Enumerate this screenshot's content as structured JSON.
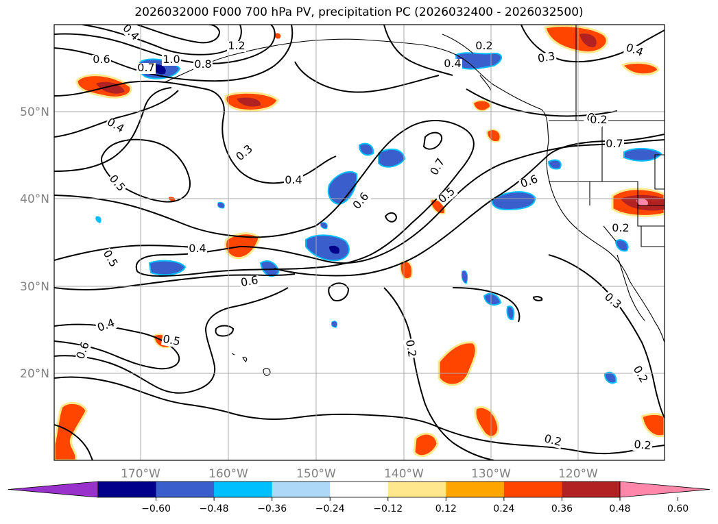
{
  "title": "2026032000 F000 700 hPa PV, precipitation PC (2026032400 - 2026032500)",
  "map": {
    "lon_range": [
      -180,
      -110
    ],
    "lat_range": [
      10,
      60
    ],
    "lon_ticks": [
      "170°W",
      "160°W",
      "150°W",
      "140°W",
      "130°W",
      "120°W"
    ],
    "lat_ticks": [
      "50°N",
      "40°N",
      "30°N",
      "20°N"
    ],
    "grid": true,
    "contour_color": "#000000",
    "contour_labels": [
      "0.6",
      "1.0",
      "0.7",
      "0.8",
      "1.2",
      "0.4",
      "0.2",
      "0.4",
      "0.3",
      "0.4",
      "0.4",
      "0.5",
      "0.3",
      "0.4",
      "0.6",
      "0.7",
      "0.5",
      "0.6",
      "0.4",
      "0.6",
      "0.5",
      "0.4",
      "0.6",
      "0.5",
      "0.3",
      "0.7",
      "0.2",
      "0.2",
      "0.2",
      "0.2",
      "0.3",
      "0.2",
      "0.2"
    ]
  },
  "colorbar": {
    "ticks": [
      "−0.60",
      "−0.48",
      "−0.36",
      "−0.24",
      "−0.12",
      "0.12",
      "0.24",
      "0.36",
      "0.48",
      "0.60"
    ],
    "colors": [
      "#9932cc",
      "#00008b",
      "#3a5fcd",
      "#00bfff",
      "#add8f7",
      "#ffffff",
      "#ffe88c",
      "#ffa500",
      "#ff4500",
      "#b22222",
      "#ff88aa"
    ]
  }
}
